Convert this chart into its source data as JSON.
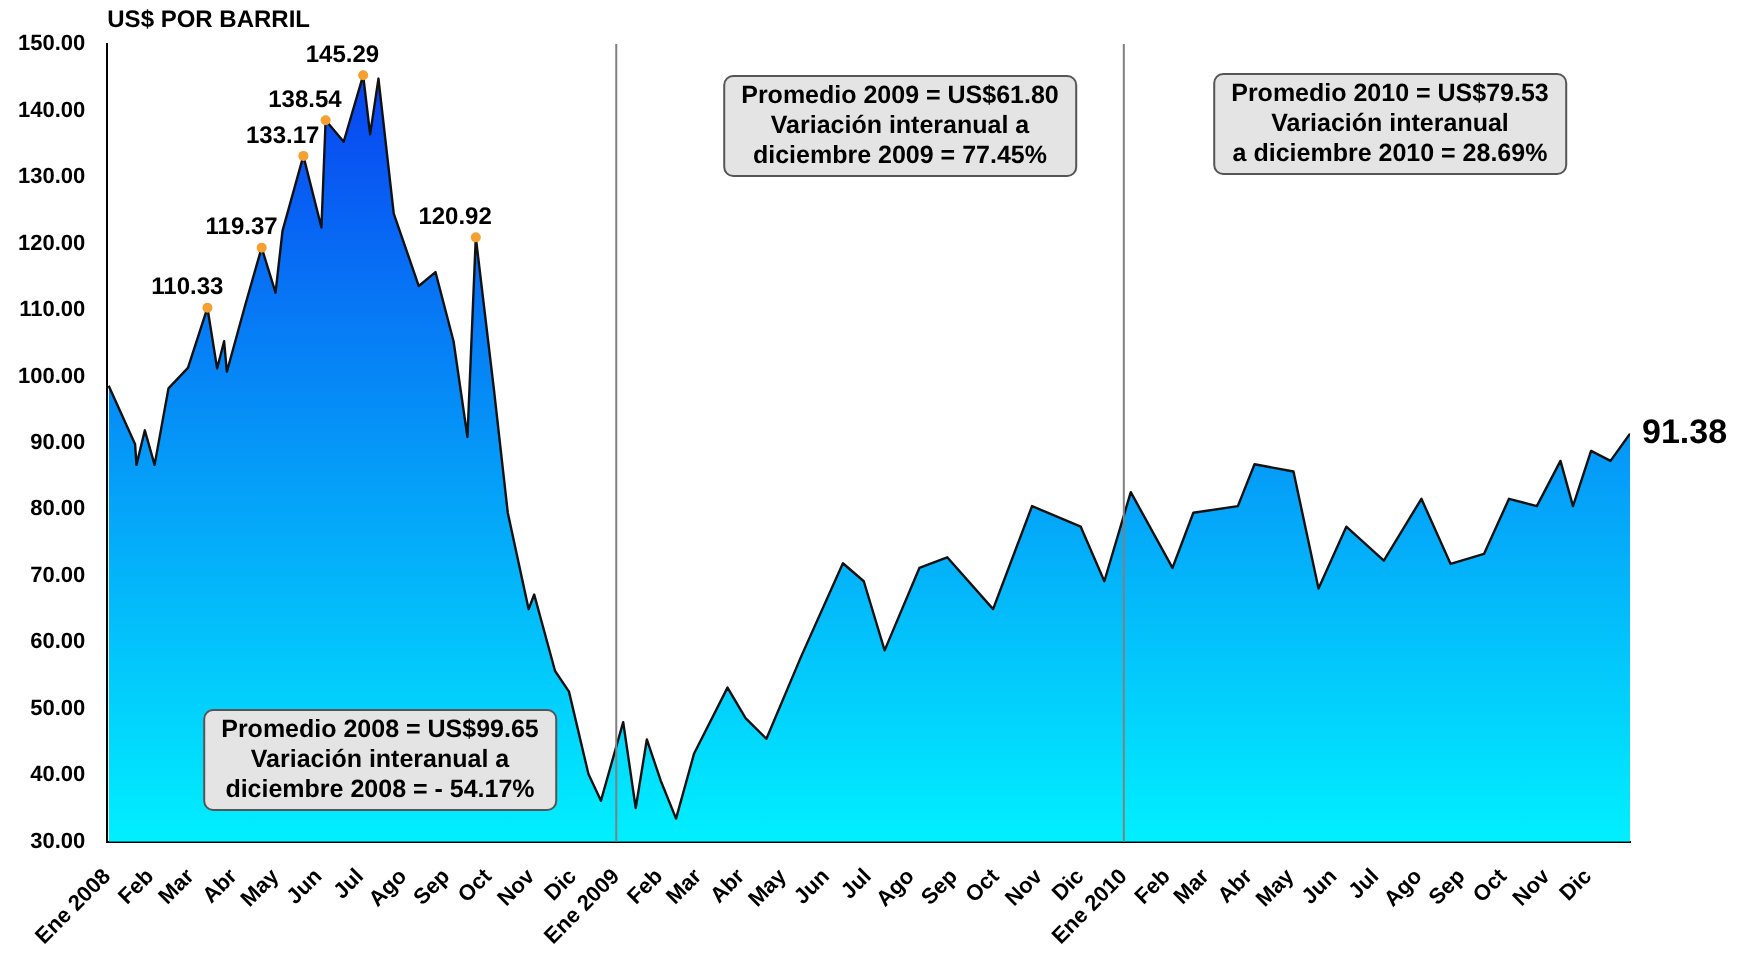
{
  "chart_data": {
    "type": "area",
    "ylabel": "US$ POR BARRIL",
    "x": [
      "2008-01-02",
      "2008-01-21",
      "2008-01-22",
      "2008-01-28",
      "2008-02-04",
      "2008-02-14",
      "2008-02-28",
      "2008-03-13",
      "2008-03-20",
      "2008-03-25",
      "2008-03-27",
      "2008-04-09",
      "2008-04-21",
      "2008-05-01",
      "2008-05-06",
      "2008-05-21",
      "2008-06-03",
      "2008-06-06",
      "2008-06-19",
      "2008-07-03",
      "2008-07-08",
      "2008-07-14",
      "2008-07-25",
      "2008-08-12",
      "2008-08-24",
      "2008-09-06",
      "2008-09-16",
      "2008-09-22",
      "2008-10-05",
      "2008-10-15",
      "2008-10-30",
      "2008-11-03",
      "2008-11-18",
      "2008-11-28",
      "2008-12-12",
      "2008-12-21",
      "2009-01-06",
      "2009-01-15",
      "2009-01-23",
      "2009-02-02",
      "2009-02-13",
      "2009-02-26",
      "2009-03-22",
      "2009-04-04",
      "2009-04-19",
      "2009-05-14",
      "2009-06-13",
      "2009-06-28",
      "2009-07-13",
      "2009-08-07",
      "2009-08-27",
      "2009-09-29",
      "2009-10-27",
      "2009-12-01",
      "2009-12-18",
      "2010-01-06",
      "2010-02-05",
      "2010-02-20",
      "2010-03-24",
      "2010-04-05",
      "2010-05-03",
      "2010-05-21",
      "2010-06-10",
      "2010-07-07",
      "2010-08-03",
      "2010-08-24",
      "2010-09-17",
      "2010-10-05",
      "2010-10-25",
      "2010-11-11",
      "2010-11-20",
      "2010-12-03",
      "2010-12-17",
      "2010-12-31"
    ],
    "series": [
      {
        "color": "#0a3cf0",
        "values": [
          98.6,
          89.8,
          86.7,
          91.9,
          86.7,
          98.2,
          101.3,
          110.33,
          101.2,
          105.3,
          100.7,
          110.6,
          119.37,
          112.6,
          121.9,
          133.17,
          122.4,
          138.54,
          135.3,
          145.29,
          136.4,
          144.8,
          124.5,
          113.6,
          115.7,
          105.3,
          90.9,
          120.92,
          98.1,
          79.5,
          65.0,
          67.2,
          55.7,
          52.6,
          40.2,
          36.2,
          48.0,
          35.1,
          45.4,
          39.2,
          33.5,
          43.3,
          53.2,
          48.6,
          45.5,
          57.9,
          71.9,
          69.2,
          58.8,
          71.2,
          72.8,
          65.0,
          80.5,
          77.4,
          69.2,
          82.6,
          71.2,
          79.5,
          80.5,
          86.8,
          85.7,
          68.1,
          77.4,
          72.3,
          81.6,
          71.8,
          73.3,
          81.6,
          80.5,
          87.3,
          80.5,
          88.8,
          87.3,
          91.38
        ],
        "value_labels": [
          null,
          null,
          null,
          null,
          null,
          null,
          null,
          "110.33",
          null,
          null,
          null,
          null,
          "119.37",
          null,
          null,
          "133.17",
          null,
          "138.54",
          null,
          "145.29",
          null,
          null,
          null,
          null,
          null,
          null,
          null,
          "120.92",
          null,
          null,
          null,
          null,
          null,
          null,
          null,
          null,
          null,
          null,
          null,
          null,
          null,
          null,
          null,
          null,
          null,
          null,
          null,
          null,
          null,
          null,
          null,
          null,
          null,
          null,
          null,
          null,
          null,
          null,
          null,
          null,
          null,
          null,
          null,
          null,
          null,
          null,
          null,
          null,
          null,
          null,
          null,
          null,
          null,
          "91.38"
        ]
      }
    ],
    "xlim": [
      "2008-01-01",
      "2010-12-31"
    ],
    "xticks": [
      {
        "value": "2008-01-01",
        "label": "Ene 2008"
      },
      {
        "value": "2008-02-01",
        "label": "Feb"
      },
      {
        "value": "2008-03-01",
        "label": "Mar"
      },
      {
        "value": "2008-04-01",
        "label": "Abr"
      },
      {
        "value": "2008-05-01",
        "label": "May"
      },
      {
        "value": "2008-06-01",
        "label": "Jun"
      },
      {
        "value": "2008-07-01",
        "label": "Jul"
      },
      {
        "value": "2008-08-01",
        "label": "Ago"
      },
      {
        "value": "2008-09-01",
        "label": "Sep"
      },
      {
        "value": "2008-10-01",
        "label": "Oct"
      },
      {
        "value": "2008-11-01",
        "label": "Nov"
      },
      {
        "value": "2008-12-01",
        "label": "Dic"
      },
      {
        "value": "2009-01-01",
        "label": "Ene 2009"
      },
      {
        "value": "2009-02-01",
        "label": "Feb"
      },
      {
        "value": "2009-03-01",
        "label": "Mar"
      },
      {
        "value": "2009-04-01",
        "label": "Abr"
      },
      {
        "value": "2009-05-01",
        "label": "May"
      },
      {
        "value": "2009-06-01",
        "label": "Jun"
      },
      {
        "value": "2009-07-01",
        "label": "Jul"
      },
      {
        "value": "2009-08-01",
        "label": "Ago"
      },
      {
        "value": "2009-09-01",
        "label": "Sep"
      },
      {
        "value": "2009-10-01",
        "label": "Oct"
      },
      {
        "value": "2009-11-01",
        "label": "Nov"
      },
      {
        "value": "2009-12-01",
        "label": "Dic"
      },
      {
        "value": "2010-01-01",
        "label": "Ene 2010"
      },
      {
        "value": "2010-02-01",
        "label": "Feb"
      },
      {
        "value": "2010-03-01",
        "label": "Mar"
      },
      {
        "value": "2010-04-01",
        "label": "Abr"
      },
      {
        "value": "2010-05-01",
        "label": "May"
      },
      {
        "value": "2010-06-01",
        "label": "Jun"
      },
      {
        "value": "2010-07-01",
        "label": "Jul"
      },
      {
        "value": "2010-08-01",
        "label": "Ago"
      },
      {
        "value": "2010-09-01",
        "label": "Sep"
      },
      {
        "value": "2010-10-01",
        "label": "Oct"
      },
      {
        "value": "2010-11-01",
        "label": "Nov"
      },
      {
        "value": "2010-12-01",
        "label": "Dic"
      }
    ],
    "ylim": [
      30,
      150
    ],
    "yticks": [
      {
        "value": 30,
        "label": "30.00"
      },
      {
        "value": 40,
        "label": "40.00"
      },
      {
        "value": 50,
        "label": "50.00"
      },
      {
        "value": 60,
        "label": "60.00"
      },
      {
        "value": 70,
        "label": "70.00"
      },
      {
        "value": 80,
        "label": "80.00"
      },
      {
        "value": 90,
        "label": "90.00"
      },
      {
        "value": 100,
        "label": "100.00"
      },
      {
        "value": 110,
        "label": "110.00"
      },
      {
        "value": 120,
        "label": "120.00"
      },
      {
        "value": 130,
        "label": "130.00"
      },
      {
        "value": 140,
        "label": "140.00"
      },
      {
        "value": 150,
        "label": "150.00"
      }
    ],
    "ref_lines": [
      {
        "axis": "x",
        "value": "2009-01-01",
        "color": "#808080"
      },
      {
        "axis": "x",
        "value": "2010-01-01",
        "color": "#808080"
      }
    ],
    "annotations": [
      "Promedio 2008 = US$99.65\nVariación interanual a\ndiciembre 2008 = - 54.17%",
      "Promedio 2009 = US$61.80\nVariación interanual a\ndiciembre 2009 = 77.45%",
      "Promedio 2010 = US$79.53\nVariación interanual\na diciembre 2010 = 28.69%"
    ],
    "grid": false,
    "legend": false,
    "marker": "none",
    "line_style": "solid"
  }
}
